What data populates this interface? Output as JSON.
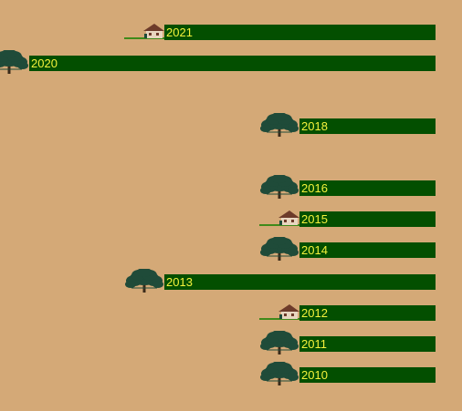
{
  "rows": [
    {
      "label": "2021",
      "icon": "house-icon"
    },
    {
      "label": "2020",
      "icon": "tree-icon"
    },
    {
      "label": "2018",
      "icon": "tree-icon"
    },
    {
      "label": "2016",
      "icon": "tree-icon"
    },
    {
      "label": "2015",
      "icon": "house-icon"
    },
    {
      "label": "2014",
      "icon": "tree-icon"
    },
    {
      "label": "2013",
      "icon": "tree-icon"
    },
    {
      "label": "2012",
      "icon": "house-icon"
    },
    {
      "label": "2011",
      "icon": "tree-icon"
    },
    {
      "label": "2010",
      "icon": "tree-icon"
    }
  ],
  "colors": {
    "background": "#d4a977",
    "bar": "#034f00",
    "label": "#f4f23c",
    "tree_foliage": "#1f4b39",
    "tree_trunk": "#3a2a1a",
    "house_wall": "#e8d6c0",
    "house_roof": "#6d3b2a",
    "grass": "#3f8a1a"
  }
}
